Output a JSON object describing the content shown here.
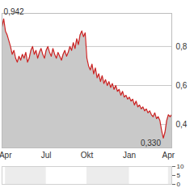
{
  "chart_data": [
    {
      "type": "area",
      "color": "#cc2222",
      "grid": true,
      "x": [
        0,
        1,
        2,
        3,
        4,
        5,
        6,
        7,
        8,
        9,
        10,
        11,
        12,
        13,
        14,
        15,
        16,
        17,
        18,
        19,
        20,
        21,
        22,
        23,
        24,
        25,
        26,
        27,
        28,
        29,
        30,
        31,
        32,
        33,
        34,
        35,
        36,
        37,
        38,
        39,
        40,
        41,
        42,
        43,
        44,
        45,
        46,
        47,
        48,
        49,
        50,
        51,
        52,
        53,
        54,
        55,
        56,
        57,
        58,
        59,
        60,
        61,
        62,
        63,
        64,
        65,
        66,
        67,
        68,
        69,
        70,
        71,
        72,
        73,
        74,
        75,
        76,
        77,
        78,
        79,
        80,
        81,
        82,
        83,
        84,
        85,
        86,
        87,
        88,
        89,
        90,
        91,
        92,
        93,
        94,
        95,
        96,
        97,
        98,
        99,
        100
      ],
      "values": [
        0.9,
        0.942,
        0.88,
        0.86,
        0.83,
        0.8,
        0.76,
        0.78,
        0.74,
        0.72,
        0.75,
        0.73,
        0.76,
        0.74,
        0.77,
        0.72,
        0.74,
        0.78,
        0.8,
        0.76,
        0.78,
        0.74,
        0.77,
        0.79,
        0.76,
        0.74,
        0.78,
        0.8,
        0.77,
        0.75,
        0.79,
        0.76,
        0.74,
        0.77,
        0.75,
        0.73,
        0.76,
        0.78,
        0.75,
        0.77,
        0.8,
        0.78,
        0.82,
        0.79,
        0.84,
        0.81,
        0.86,
        0.88,
        0.85,
        0.87,
        0.74,
        0.7,
        0.68,
        0.71,
        0.66,
        0.69,
        0.64,
        0.66,
        0.62,
        0.65,
        0.61,
        0.63,
        0.6,
        0.62,
        0.59,
        0.61,
        0.58,
        0.6,
        0.57,
        0.58,
        0.55,
        0.57,
        0.54,
        0.55,
        0.53,
        0.54,
        0.52,
        0.53,
        0.5,
        0.52,
        0.49,
        0.5,
        0.48,
        0.49,
        0.47,
        0.48,
        0.46,
        0.47,
        0.45,
        0.44,
        0.46,
        0.43,
        0.44,
        0.42,
        0.37,
        0.33,
        0.36,
        0.42,
        0.45,
        0.44,
        0.45
      ],
      "xlim": [
        0,
        100
      ],
      "xticks": [
        {
          "value": 2,
          "label": "Apr"
        },
        {
          "value": 26,
          "label": "Jul"
        },
        {
          "value": 50,
          "label": "Okt"
        },
        {
          "value": 75,
          "label": "Jan"
        },
        {
          "value": 98,
          "label": "Apr"
        }
      ],
      "ylim": [
        0.28,
        0.97
      ],
      "yticks": [
        {
          "value": 0.4,
          "label": "0,4"
        },
        {
          "value": 0.6,
          "label": "0,6"
        },
        {
          "value": 0.8,
          "label": "0,8"
        }
      ],
      "annotations": [
        {
          "x": 1,
          "y": 0.942,
          "text": "0,942"
        },
        {
          "x": 95,
          "y": 0.33,
          "text": "0,330"
        }
      ]
    },
    {
      "type": "bar",
      "tick_labels": "y",
      "xlim": [
        0,
        100
      ],
      "xticks": [
        2,
        26,
        50,
        75,
        98
      ],
      "ylim": [
        0,
        10
      ],
      "yticks": [
        0,
        5,
        10
      ]
    }
  ]
}
